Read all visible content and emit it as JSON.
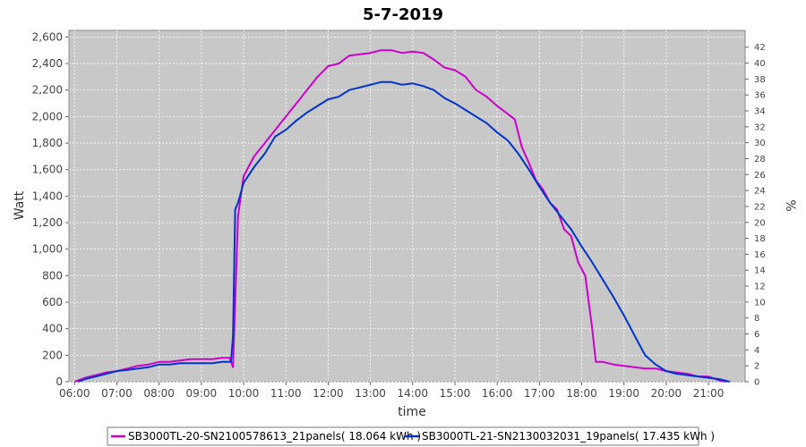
{
  "chart_data": {
    "type": "line",
    "title": "5-7-2019",
    "xlabel": "time",
    "ylabel": "Watt",
    "y2label": "%",
    "xlim": [
      "05:52",
      "21:52"
    ],
    "ylim": [
      0,
      2650
    ],
    "y2lim": [
      0,
      44.1
    ],
    "x_ticks": [
      "06:00",
      "07:00",
      "08:00",
      "09:00",
      "10:00",
      "11:00",
      "12:00",
      "13:00",
      "14:00",
      "15:00",
      "16:00",
      "17:00",
      "18:00",
      "19:00",
      "20:00",
      "21:00"
    ],
    "y_ticks": [
      "0",
      "200",
      "400",
      "600",
      "800",
      "1,000",
      "1,200",
      "1,400",
      "1,600",
      "1,800",
      "2,000",
      "2,200",
      "2,400",
      "2,600"
    ],
    "y2_ticks": [
      "0",
      "2",
      "4",
      "6",
      "8",
      "10",
      "12",
      "14",
      "16",
      "18",
      "20",
      "22",
      "24",
      "26",
      "28",
      "30",
      "32",
      "34",
      "36",
      "38",
      "40",
      "42"
    ],
    "grid": true,
    "legend_position": "bottom",
    "series": [
      {
        "name": "SB3000TL-20-SN2100578613_21panels( 18.064 kWh )",
        "color": "#cc00cc",
        "points": [
          [
            "06:00",
            0
          ],
          [
            "06:15",
            30
          ],
          [
            "06:30",
            50
          ],
          [
            "06:45",
            70
          ],
          [
            "07:00",
            80
          ],
          [
            "07:15",
            100
          ],
          [
            "07:30",
            120
          ],
          [
            "07:45",
            130
          ],
          [
            "08:00",
            150
          ],
          [
            "08:15",
            150
          ],
          [
            "08:30",
            160
          ],
          [
            "08:45",
            170
          ],
          [
            "09:00",
            170
          ],
          [
            "09:15",
            170
          ],
          [
            "09:30",
            180
          ],
          [
            "09:40",
            180
          ],
          [
            "09:45",
            110
          ],
          [
            "09:52",
            1250
          ],
          [
            "10:00",
            1550
          ],
          [
            "10:15",
            1700
          ],
          [
            "10:30",
            1800
          ],
          [
            "10:45",
            1900
          ],
          [
            "11:00",
            2000
          ],
          [
            "11:15",
            2100
          ],
          [
            "11:30",
            2200
          ],
          [
            "11:45",
            2300
          ],
          [
            "12:00",
            2380
          ],
          [
            "12:15",
            2400
          ],
          [
            "12:30",
            2460
          ],
          [
            "12:45",
            2470
          ],
          [
            "13:00",
            2480
          ],
          [
            "13:15",
            2500
          ],
          [
            "13:30",
            2500
          ],
          [
            "13:45",
            2480
          ],
          [
            "14:00",
            2490
          ],
          [
            "14:15",
            2480
          ],
          [
            "14:30",
            2430
          ],
          [
            "14:45",
            2370
          ],
          [
            "15:00",
            2350
          ],
          [
            "15:15",
            2300
          ],
          [
            "15:30",
            2200
          ],
          [
            "15:45",
            2150
          ],
          [
            "16:00",
            2080
          ],
          [
            "16:15",
            2020
          ],
          [
            "16:25",
            1980
          ],
          [
            "16:35",
            1770
          ],
          [
            "16:45",
            1650
          ],
          [
            "16:55",
            1520
          ],
          [
            "17:05",
            1450
          ],
          [
            "17:15",
            1350
          ],
          [
            "17:25",
            1300
          ],
          [
            "17:35",
            1150
          ],
          [
            "17:45",
            1100
          ],
          [
            "17:55",
            900
          ],
          [
            "18:05",
            800
          ],
          [
            "18:10",
            600
          ],
          [
            "18:15",
            400
          ],
          [
            "18:20",
            150
          ],
          [
            "18:30",
            150
          ],
          [
            "18:45",
            130
          ],
          [
            "19:00",
            120
          ],
          [
            "19:15",
            110
          ],
          [
            "19:30",
            100
          ],
          [
            "19:45",
            100
          ],
          [
            "20:00",
            80
          ],
          [
            "20:15",
            70
          ],
          [
            "20:30",
            60
          ],
          [
            "20:45",
            40
          ],
          [
            "21:00",
            40
          ],
          [
            "21:15",
            10
          ],
          [
            "21:25",
            0
          ]
        ]
      },
      {
        "name": "SB3000TL-21-SN2130032031_19panels( 17.435 kWh )",
        "color": "#0033cc",
        "points": [
          [
            "06:05",
            0
          ],
          [
            "06:15",
            20
          ],
          [
            "06:30",
            40
          ],
          [
            "06:45",
            60
          ],
          [
            "07:00",
            80
          ],
          [
            "07:15",
            90
          ],
          [
            "07:30",
            100
          ],
          [
            "07:45",
            110
          ],
          [
            "08:00",
            130
          ],
          [
            "08:15",
            130
          ],
          [
            "08:30",
            140
          ],
          [
            "08:45",
            140
          ],
          [
            "09:00",
            140
          ],
          [
            "09:15",
            140
          ],
          [
            "09:30",
            150
          ],
          [
            "09:42",
            150
          ],
          [
            "09:45",
            350
          ],
          [
            "09:48",
            1300
          ],
          [
            "09:52",
            1350
          ],
          [
            "10:00",
            1500
          ],
          [
            "10:15",
            1620
          ],
          [
            "10:30",
            1720
          ],
          [
            "10:45",
            1850
          ],
          [
            "11:00",
            1900
          ],
          [
            "11:15",
            1970
          ],
          [
            "11:30",
            2030
          ],
          [
            "11:45",
            2080
          ],
          [
            "12:00",
            2130
          ],
          [
            "12:15",
            2150
          ],
          [
            "12:30",
            2200
          ],
          [
            "12:45",
            2220
          ],
          [
            "13:00",
            2240
          ],
          [
            "13:15",
            2260
          ],
          [
            "13:30",
            2260
          ],
          [
            "13:45",
            2240
          ],
          [
            "14:00",
            2250
          ],
          [
            "14:15",
            2230
          ],
          [
            "14:30",
            2200
          ],
          [
            "14:45",
            2140
          ],
          [
            "15:00",
            2100
          ],
          [
            "15:15",
            2050
          ],
          [
            "15:30",
            2000
          ],
          [
            "15:45",
            1950
          ],
          [
            "16:00",
            1880
          ],
          [
            "16:15",
            1820
          ],
          [
            "16:30",
            1720
          ],
          [
            "16:45",
            1600
          ],
          [
            "17:00",
            1470
          ],
          [
            "17:15",
            1350
          ],
          [
            "17:30",
            1250
          ],
          [
            "17:45",
            1150
          ],
          [
            "18:00",
            1020
          ],
          [
            "18:15",
            900
          ],
          [
            "18:30",
            770
          ],
          [
            "18:45",
            640
          ],
          [
            "19:00",
            500
          ],
          [
            "19:15",
            350
          ],
          [
            "19:30",
            200
          ],
          [
            "19:45",
            130
          ],
          [
            "20:00",
            80
          ],
          [
            "20:15",
            60
          ],
          [
            "20:30",
            50
          ],
          [
            "20:45",
            40
          ],
          [
            "21:00",
            30
          ],
          [
            "21:15",
            20
          ],
          [
            "21:30",
            0
          ]
        ]
      }
    ]
  }
}
